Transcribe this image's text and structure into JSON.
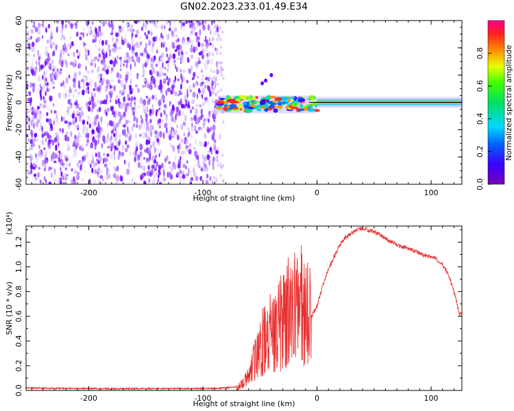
{
  "figure": {
    "title": "GN02.2023.233.01.49.E34"
  },
  "chart_data": [
    {
      "type": "heatmap",
      "panel": "top",
      "xlabel": "Height of straight line (km)",
      "ylabel": "Frequency (Hz)",
      "xlim": [
        -255,
        127
      ],
      "ylim": [
        -60,
        60
      ],
      "x_ticks": [
        -200,
        -100,
        0,
        100
      ],
      "y_ticks": [
        -60,
        -40,
        -20,
        0,
        20,
        40,
        60
      ],
      "colorbar": {
        "label": "Normalized spectral amplitude",
        "range": [
          0,
          1
        ],
        "ticks": [
          0.0,
          0.2,
          0.4,
          0.6,
          0.8
        ],
        "colormap": "rainbow (purple-blue-cyan-green-yellow-red-pink)"
      },
      "regions": [
        {
          "x_range": [
            -255,
            -87
          ],
          "freq_range": [
            -60,
            60
          ],
          "amplitude": "low, scattered (0.0-0.1)"
        },
        {
          "x_range": [
            -87,
            0
          ],
          "freq_range": [
            -8,
            5
          ],
          "amplitude": "mixed, 0.1-0.9"
        },
        {
          "x_range": [
            0,
            127
          ],
          "freq_range": [
            -2,
            2
          ],
          "amplitude": "high near 0 Hz (0.5-0.9)"
        }
      ]
    },
    {
      "type": "line",
      "panel": "bottom",
      "xlabel": "Height of straight line (km)",
      "ylabel": "SNR (10 * v/v)",
      "y_multiplier": "(x10⁴)",
      "xlim": [
        -255,
        127
      ],
      "ylim": [
        0,
        1.33
      ],
      "x_ticks": [
        -200,
        -100,
        0,
        100
      ],
      "y_ticks": [
        0.0,
        0.2,
        0.4,
        0.6,
        0.8,
        1.0,
        1.2
      ],
      "color": "#e83030",
      "x": [
        -255,
        -200,
        -150,
        -100,
        -80,
        -70,
        -65,
        -60,
        -55,
        -50,
        -45,
        -40,
        -35,
        -30,
        -25,
        -20,
        -15,
        -10,
        -5,
        0,
        5,
        10,
        15,
        20,
        25,
        30,
        35,
        40,
        45,
        50,
        55,
        60,
        65,
        70,
        75,
        80,
        85,
        90,
        95,
        100,
        105,
        110,
        115,
        120,
        125
      ],
      "y": [
        0.02,
        0.015,
        0.015,
        0.015,
        0.02,
        0.03,
        0.06,
        0.12,
        0.25,
        0.4,
        0.45,
        0.5,
        0.55,
        0.6,
        0.68,
        0.75,
        0.8,
        0.74,
        0.6,
        0.68,
        0.85,
        0.98,
        1.08,
        1.18,
        1.24,
        1.27,
        1.3,
        1.31,
        1.3,
        1.28,
        1.26,
        1.23,
        1.2,
        1.18,
        1.16,
        1.15,
        1.13,
        1.11,
        1.09,
        1.08,
        1.06,
        1.02,
        0.94,
        0.8,
        0.62
      ]
    }
  ]
}
